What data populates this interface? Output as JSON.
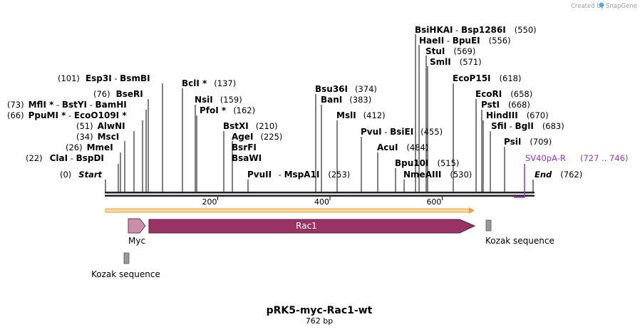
{
  "brand": {
    "prefix": "Created by",
    "name": "SnapGene",
    "accent": "#5aa7d6"
  },
  "title": "pRK5-myc-Rac1-wt",
  "length_label": "762 bp",
  "scale": {
    "total_bp": 762,
    "ticks": [
      {
        "bp": 200,
        "label": "200"
      },
      {
        "bp": 400,
        "label": "400"
      },
      {
        "bp": 600,
        "label": "600"
      }
    ]
  },
  "sites": [
    {
      "name": "Start",
      "pos": "(0)",
      "bp": 0,
      "italic": true,
      "side": "right"
    },
    {
      "name": "ClaI",
      "name2": "BspDI",
      "pos": "(22)",
      "bp": 22,
      "side": "left"
    },
    {
      "name": "MmeI",
      "pos": "(26)",
      "bp": 26,
      "side": "left"
    },
    {
      "name": "MscI",
      "pos": "(34)",
      "bp": 34,
      "side": "left"
    },
    {
      "name": "AlwNI",
      "pos": "(51)",
      "bp": 51,
      "side": "left"
    },
    {
      "name": "PpuMI *",
      "name2": "EcoO109I *",
      "pos": "(66)",
      "bp": 66,
      "side": "left"
    },
    {
      "name": "MflI *",
      "name2": "BstYI",
      "name3": "BamHI",
      "pos": "(73)",
      "bp": 73,
      "side": "left"
    },
    {
      "name": "BseRI",
      "pos": "(76)",
      "bp": 76,
      "side": "left"
    },
    {
      "name": "Esp3I",
      "name2": "BsmBI",
      "pos": "(101)",
      "bp": 101,
      "side": "left"
    },
    {
      "name": "BclI *",
      "pos": "(137)",
      "bp": 137,
      "side": "right"
    },
    {
      "name": "NsiI",
      "pos": "(159)",
      "bp": 159,
      "side": "right"
    },
    {
      "name": "PfoI *",
      "pos": "(162)",
      "bp": 162,
      "side": "right"
    },
    {
      "name": "BstXI",
      "pos": "(210)",
      "bp": 210,
      "side": "right"
    },
    {
      "name": "AgeI",
      "pos": "(225)",
      "bp": 225,
      "side": "right",
      "group": [
        "BsrFI",
        "BsaWI"
      ]
    },
    {
      "name": "PvuII",
      "name2": "MspA1I",
      "pos": "(253)",
      "bp": 253,
      "side": "right"
    },
    {
      "name": "Bsu36I",
      "pos": "(374)",
      "bp": 374,
      "side": "right"
    },
    {
      "name": "BanI",
      "pos": "(383)",
      "bp": 383,
      "side": "right"
    },
    {
      "name": "MslI",
      "pos": "(412)",
      "bp": 412,
      "side": "right"
    },
    {
      "name": "PvuI",
      "name2": "BsiEI",
      "pos": "(455)",
      "bp": 455,
      "side": "right"
    },
    {
      "name": "AcuI",
      "pos": "(484)",
      "bp": 484,
      "side": "right"
    },
    {
      "name": "Bpu10I",
      "pos": "(515)",
      "bp": 515,
      "side": "right"
    },
    {
      "name": "NmeAIII",
      "pos": "(530)",
      "bp": 530,
      "side": "right"
    },
    {
      "name": "BsiHKAI",
      "name2": "Bsp1286I",
      "pos": "(550)",
      "bp": 550,
      "side": "right"
    },
    {
      "name": "HaeII",
      "name2": "BpuEI",
      "pos": "(556)",
      "bp": 556,
      "side": "right"
    },
    {
      "name": "StuI",
      "pos": "(569)",
      "bp": 569,
      "side": "right"
    },
    {
      "name": "SmlI",
      "pos": "(571)",
      "bp": 571,
      "side": "right"
    },
    {
      "name": "EcoP15I",
      "pos": "(618)",
      "bp": 618,
      "side": "right"
    },
    {
      "name": "EcoRI",
      "pos": "(658)",
      "bp": 658,
      "side": "right"
    },
    {
      "name": "PstI",
      "pos": "(668)",
      "bp": 668,
      "side": "right"
    },
    {
      "name": "HindIII",
      "pos": "(670)",
      "bp": 670,
      "side": "right"
    },
    {
      "name": "SfiI",
      "name2": "BglI",
      "pos": "(683)",
      "bp": 683,
      "side": "right"
    },
    {
      "name": "PsiI",
      "pos": "(709)",
      "bp": 709,
      "side": "right"
    },
    {
      "name": "End",
      "pos": "(762)",
      "bp": 762,
      "italic": true,
      "side": "right"
    }
  ],
  "primer": {
    "name": "SV40pA-R",
    "range": "(727 .. 746)",
    "color": "#9933cc"
  },
  "features": {
    "orf": {
      "color": "#f0a030"
    },
    "myc": {
      "label": "Myc",
      "color": "#c98fa8"
    },
    "rac1": {
      "label": "Rac1",
      "color": "#993366"
    },
    "kozak_left": {
      "label": "Kozak sequence",
      "color": "#999999"
    },
    "kozak_right": {
      "label": "Kozak sequence",
      "color": "#999999"
    }
  }
}
